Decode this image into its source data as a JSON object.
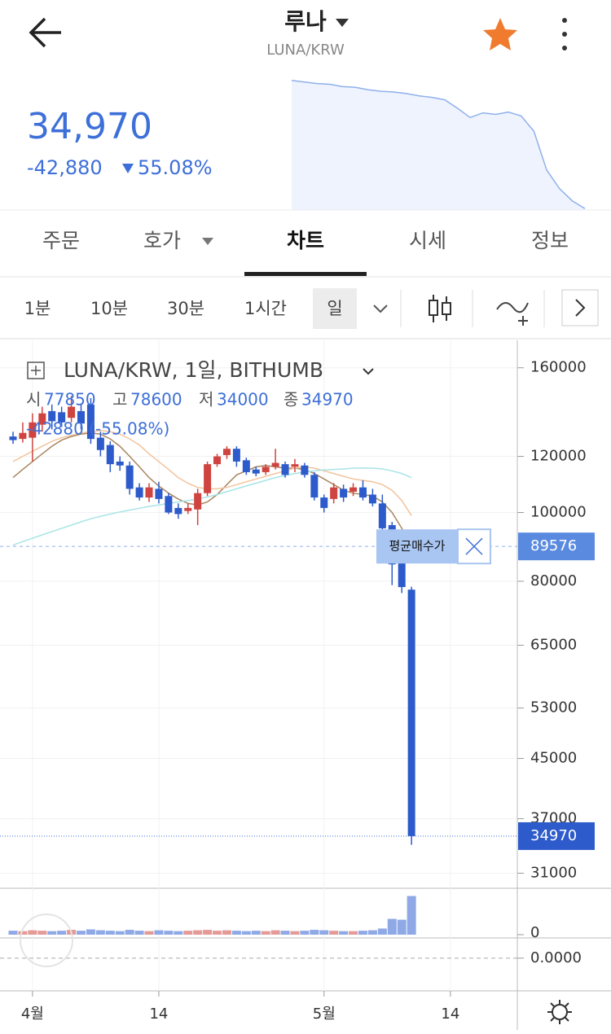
{
  "header": {
    "title": "루나",
    "subtitle": "LUNA/KRW",
    "price": "34,970",
    "change": "-42,880",
    "change_rate": "55.08%"
  },
  "tabs": [
    "주문",
    "호가",
    "차트",
    "시세",
    "정보"
  ],
  "intervals": [
    "1분",
    "10분",
    "30분",
    "1시간",
    "일"
  ],
  "chart_legend": {
    "symbol": "LUNA/KRW, 1일, BITHUMB",
    "open_label": "시",
    "high_label": "고",
    "low_label": "저",
    "close_label": "종",
    "change": "-42880 (-55.08%)"
  },
  "sparkline": {
    "values": [
      118000,
      117000,
      116000,
      115500,
      114000,
      113500,
      112000,
      111000,
      110500,
      109500,
      108000,
      107000,
      105500,
      100000,
      94000,
      97000,
      96000,
      97500,
      95000,
      85000,
      60000,
      48000,
      40000,
      34970
    ],
    "ylim": [
      34000,
      120000
    ],
    "color": "#8fb0ec"
  },
  "chart_data": {
    "type": "candlestick",
    "categories": [
      null,
      null,
      "4월",
      null,
      null,
      null,
      null,
      null,
      null,
      null,
      null,
      null,
      null,
      null,
      null,
      "14",
      null,
      null,
      null,
      null,
      null,
      null,
      null,
      null,
      null,
      null,
      null,
      null,
      null,
      null,
      null,
      null,
      "5월",
      null,
      null,
      null,
      null,
      null,
      null,
      null,
      null,
      null,
      null,
      null,
      null,
      "14"
    ],
    "open": [
      128000,
      127000,
      127500,
      133000,
      139000,
      138500,
      136000,
      139000,
      142000,
      127500,
      124500,
      118000,
      116500,
      108500,
      105000,
      108000,
      105500,
      101500,
      100500,
      101000,
      106500,
      117000,
      120500,
      123000,
      118500,
      115000,
      114000,
      116000,
      117000,
      116000,
      116500,
      113000,
      105000,
      104500,
      108000,
      107000,
      108500,
      106000,
      103000,
      96000,
      86000,
      77850,
      null,
      null,
      null,
      null
    ],
    "high": [
      130000,
      134000,
      138000,
      141000,
      142000,
      141000,
      146000,
      142000,
      145000,
      130000,
      126000,
      120000,
      118000,
      110000,
      110000,
      110500,
      106500,
      103000,
      103000,
      108000,
      118000,
      121000,
      124000,
      124000,
      119500,
      116000,
      117000,
      123000,
      118000,
      119000,
      117500,
      114000,
      106000,
      110000,
      109500,
      110000,
      111000,
      108000,
      106000,
      97000,
      88000,
      78600,
      null,
      null,
      null,
      null
    ],
    "low": [
      125000,
      125500,
      118000,
      130000,
      131000,
      132000,
      134000,
      131000,
      125000,
      120000,
      114000,
      114500,
      106000,
      104000,
      103500,
      103000,
      99500,
      98000,
      99500,
      96000,
      105500,
      116000,
      119000,
      116000,
      113000,
      112500,
      113000,
      115000,
      112000,
      114000,
      112000,
      104000,
      100000,
      103000,
      103500,
      105500,
      104000,
      102000,
      94000,
      79000,
      77000,
      34000,
      null,
      null,
      null,
      null
    ],
    "close": [
      126500,
      129500,
      134000,
      138000,
      134500,
      134000,
      141000,
      133500,
      127000,
      122500,
      117000,
      116500,
      108000,
      105000,
      108500,
      104500,
      100000,
      99500,
      101500,
      106500,
      117000,
      120000,
      123000,
      118000,
      114000,
      113500,
      116000,
      117500,
      113000,
      117000,
      113000,
      105000,
      101500,
      108500,
      105000,
      108500,
      105000,
      103000,
      95000,
      84500,
      78500,
      34970,
      null,
      null,
      null,
      null
    ],
    "up_color": "#cf4440",
    "down_color": "#2d5bcb",
    "log_scale": true,
    "grid": true,
    "ylim": [
      29600,
      174000
    ],
    "yticks": [
      160000,
      120000,
      100000,
      80000,
      65000,
      53000,
      45000,
      37000,
      31000
    ],
    "moving_averages": [
      {
        "color": "#a98660",
        "values": [
          112000,
          115000,
          118000,
          121000,
          124000,
          126500,
          128000,
          129000,
          129500,
          129000,
          127000,
          124000,
          120000,
          116000,
          112000,
          109000,
          106500,
          104500,
          103000,
          102500,
          103500,
          106000,
          109500,
          113000,
          114500,
          116000,
          116500,
          116000,
          115500,
          115500,
          115000,
          113500,
          111500,
          109500,
          107500,
          106500,
          106000,
          105500,
          103500,
          100000,
          95000,
          90000,
          null,
          null,
          null,
          null
        ]
      },
      {
        "color": "#f3c39c",
        "values": [
          118000,
          120000,
          122000,
          124000,
          126000,
          127500,
          128500,
          129500,
          130000,
          130500,
          130000,
          129000,
          127000,
          124500,
          121000,
          118000,
          115000,
          112000,
          110000,
          108500,
          108000,
          108000,
          108500,
          109500,
          110500,
          111500,
          112500,
          113500,
          114500,
          115500,
          116000,
          115500,
          114500,
          113500,
          112500,
          111500,
          111000,
          110500,
          109500,
          107500,
          104000,
          99000,
          null,
          null,
          null,
          null
        ]
      },
      {
        "color": "#a8e4e6",
        "values": [
          90000,
          91000,
          92000,
          93000,
          94000,
          95000,
          96000,
          97000,
          98000,
          98800,
          99500,
          100200,
          100800,
          101400,
          102000,
          102500,
          103000,
          103500,
          104000,
          104500,
          105200,
          106000,
          107000,
          108000,
          109000,
          110000,
          111000,
          112000,
          112800,
          113500,
          114000,
          114500,
          114800,
          115000,
          115200,
          115500,
          115500,
          115500,
          115200,
          114500,
          113500,
          112000,
          null,
          null,
          null,
          null
        ]
      }
    ],
    "avg_price": {
      "label": "평균매수가",
      "value": 89576
    },
    "volume": {
      "values": [
        9,
        8,
        10,
        9,
        8,
        9,
        11,
        9,
        12,
        10,
        9,
        8,
        11,
        9,
        8,
        10,
        9,
        8,
        9,
        10,
        11,
        9,
        10,
        9,
        8,
        9,
        8,
        10,
        9,
        8,
        9,
        11,
        10,
        9,
        8,
        8,
        9,
        10,
        14,
        36,
        34,
        88,
        null,
        null,
        null,
        null
      ],
      "ylim": [
        0,
        100
      ],
      "yticks": [
        0
      ]
    },
    "indicator": {
      "ylim": [
        -1.6,
        1
      ],
      "yticks": [
        {
          "value": 0,
          "label": "0.0000"
        }
      ]
    }
  }
}
